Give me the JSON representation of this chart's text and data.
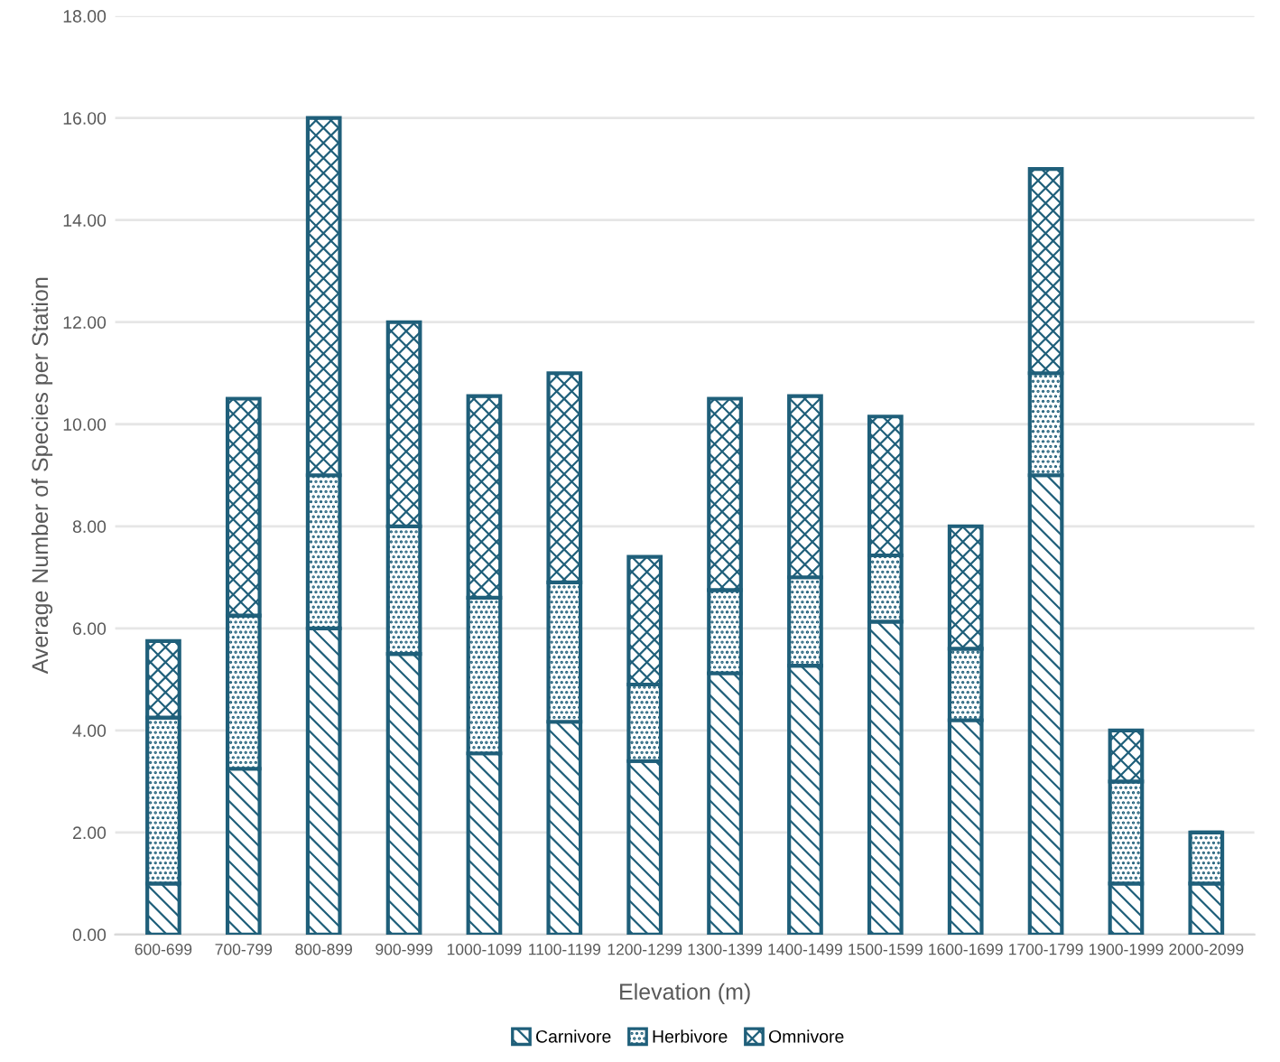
{
  "chart_data": {
    "type": "bar",
    "stacked": true,
    "xlabel": "Elevation (m)",
    "ylabel": "Average Number of Species per Station",
    "categories": [
      "600-699",
      "700-799",
      "800-899",
      "900-999",
      "1000-1099",
      "1100-1199",
      "1200-1299",
      "1300-1399",
      "1400-1499",
      "1500-1599",
      "1600-1699",
      "1700-1799",
      "1900-1999",
      "2000-2099"
    ],
    "series": [
      {
        "name": "Carnivore",
        "color": "#1f5f7a",
        "values": [
          1,
          3.25,
          6,
          5.5,
          3.55,
          4.17,
          3.4,
          5.12,
          5.27,
          6.13,
          4.2,
          9,
          1,
          1
        ]
      },
      {
        "name": "Herbivore",
        "color": "#1f5f7a",
        "values": [
          3.25,
          3.0,
          3,
          2.5,
          3.05,
          2.73,
          1.5,
          1.63,
          1.73,
          1.3,
          1.4,
          2,
          2,
          1
        ]
      },
      {
        "name": "Omnivore",
        "color": "#1f5f7a",
        "values": [
          1.5,
          4.25,
          7,
          4,
          3.95,
          4.1,
          2.5,
          3.75,
          3.55,
          2.72,
          2.4,
          4,
          1,
          0
        ]
      }
    ],
    "ylim": [
      0,
      18
    ],
    "yticks": [
      {
        "value": 0,
        "label": "0.00"
      },
      {
        "value": 2,
        "label": "2.00"
      },
      {
        "value": 4,
        "label": "4.00"
      },
      {
        "value": 6,
        "label": "6.00"
      },
      {
        "value": 8,
        "label": "8.00"
      },
      {
        "value": 10,
        "label": "10.00"
      },
      {
        "value": 12,
        "label": "12.00"
      },
      {
        "value": 14,
        "label": "14.00"
      },
      {
        "value": 16,
        "label": "16.00"
      },
      {
        "value": 18,
        "label": "18.00"
      }
    ],
    "grid": "y",
    "legend": "bottom"
  }
}
